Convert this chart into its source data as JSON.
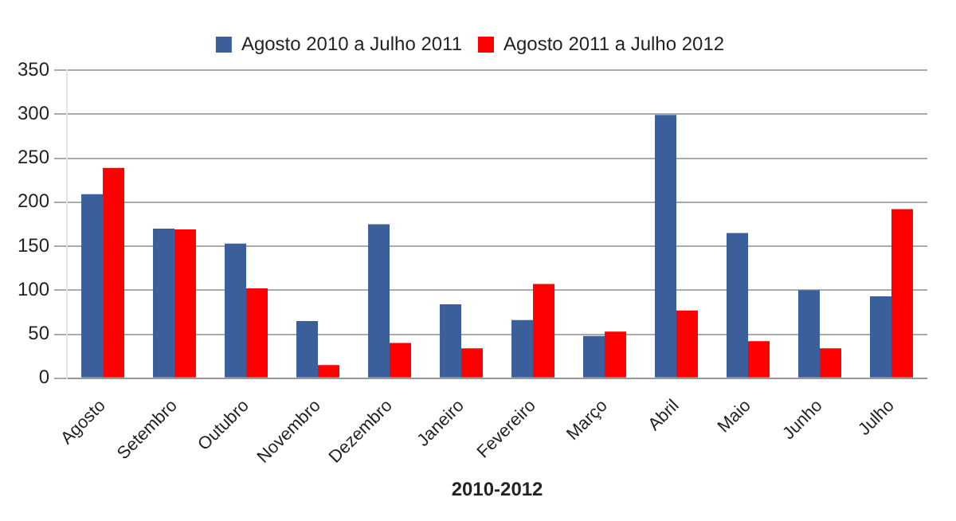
{
  "chart_data": {
    "type": "bar",
    "xlabel": "2010-2012",
    "categories": [
      "Agosto",
      "Setembro",
      "Outubro",
      "Novembro",
      "Dezembro",
      "Janeiro",
      "Fevereiro",
      "Março",
      "Abril",
      "Maio",
      "Junho",
      "Julho"
    ],
    "series": [
      {
        "name": "Agosto 2010 a Julho 2011",
        "color": "#3a5f9a",
        "values": [
          209,
          170,
          153,
          65,
          175,
          84,
          66,
          48,
          299,
          165,
          100,
          93
        ]
      },
      {
        "name": "Agosto 2011 a Julho 2012",
        "color": "#ff0000",
        "values": [
          239,
          169,
          102,
          15,
          40,
          34,
          107,
          53,
          77,
          42,
          34,
          192
        ]
      }
    ],
    "ylim": [
      0,
      350
    ],
    "yticks": [
      0,
      50,
      100,
      150,
      200,
      250,
      300,
      350
    ],
    "grid": "y",
    "legend": "top"
  }
}
